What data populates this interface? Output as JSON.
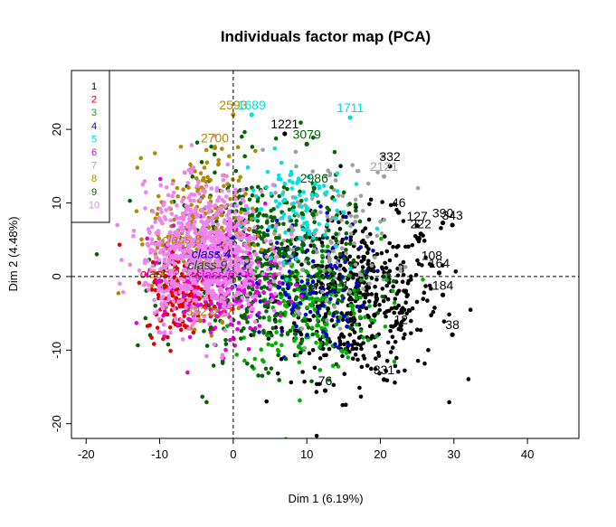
{
  "chart_data": {
    "type": "scatter",
    "title": "Individuals factor map (PCA)",
    "xlabel": "Dim 1 (6.19%)",
    "ylabel": "Dim 2 (4.48%)",
    "xlim": [
      -22,
      47
    ],
    "ylim": [
      -22,
      28
    ],
    "x_ticks": [
      -20,
      -10,
      0,
      10,
      20,
      30,
      40
    ],
    "y_ticks": [
      -20,
      -10,
      0,
      10,
      20
    ],
    "legend": {
      "placement": "top-left",
      "entries": [
        {
          "label": "1",
          "color": "#000000"
        },
        {
          "label": "2",
          "color": "#DF0000"
        },
        {
          "label": "3",
          "color": "#00B000"
        },
        {
          "label": "4",
          "color": "#0000D0"
        },
        {
          "label": "5",
          "color": "#00E0E0"
        },
        {
          "label": "6",
          "color": "#E000E0"
        },
        {
          "label": "7",
          "color": "#A0A0A0"
        },
        {
          "label": "8",
          "color": "#B08A00"
        },
        {
          "label": "9",
          "color": "#006400"
        },
        {
          "label": "10",
          "color": "#EE82EE"
        }
      ]
    },
    "class_centers": [
      {
        "label": "class 8",
        "x": -7,
        "y": 4.5,
        "color": "#B08A00"
      },
      {
        "label": "class 4",
        "x": -3,
        "y": 2.5,
        "color": "#0000D0"
      },
      {
        "label": "class 9",
        "x": -3.5,
        "y": 1.0,
        "color": "#006400"
      },
      {
        "label": "class 2",
        "x": -10,
        "y": -0.2,
        "color": "#DF0000"
      },
      {
        "label": "class 6",
        "x": -2.5,
        "y": -0.3,
        "color": "#E000E0"
      },
      {
        "label": "class 1",
        "x": 13,
        "y": -1.8,
        "color": "#000000"
      }
    ],
    "labeled_points": [
      {
        "label": "2593",
        "x": 0.0,
        "y": 22.0,
        "class": 8
      },
      {
        "label": "1689",
        "x": 2.5,
        "y": 22.0,
        "class": 5
      },
      {
        "label": "1711",
        "x": 15.9,
        "y": 21.6,
        "class": 5
      },
      {
        "label": "1221",
        "x": 7.0,
        "y": 19.4,
        "class": 1
      },
      {
        "label": "3079",
        "x": 10.0,
        "y": 18.0,
        "class": 9
      },
      {
        "label": "2700",
        "x": -2.5,
        "y": 17.5,
        "class": 8
      },
      {
        "label": "332",
        "x": 21.3,
        "y": 15.0,
        "class": 1
      },
      {
        "label": "2121",
        "x": 20.5,
        "y": 13.6,
        "class": 7
      },
      {
        "label": "2986",
        "x": 11.0,
        "y": 12.0,
        "class": 9
      },
      {
        "label": "46",
        "x": 22.5,
        "y": 8.7,
        "class": 1
      },
      {
        "label": "390",
        "x": 28.5,
        "y": 7.3,
        "class": 1
      },
      {
        "label": "343",
        "x": 29.8,
        "y": 7.0,
        "class": 1
      },
      {
        "label": "127",
        "x": 25.0,
        "y": 6.9,
        "class": 1
      },
      {
        "label": "222",
        "x": 25.5,
        "y": 5.8,
        "class": 1
      },
      {
        "label": "108",
        "x": 27.0,
        "y": 1.5,
        "class": 1
      },
      {
        "label": "164",
        "x": 28.0,
        "y": 0.5,
        "class": 1
      },
      {
        "label": "184",
        "x": 28.5,
        "y": -2.5,
        "class": 1
      },
      {
        "label": "38",
        "x": 29.8,
        "y": -7.9,
        "class": 1
      },
      {
        "label": "12",
        "x": 22.8,
        "y": -7.2,
        "class": 1
      },
      {
        "label": "331",
        "x": 20.5,
        "y": -14.0,
        "class": 1
      },
      {
        "label": "76",
        "x": 12.5,
        "y": -15.5,
        "class": 1
      },
      {
        "label": "3322",
        "x": -4.5,
        "y": -6.0,
        "class": 8
      },
      {
        "label": "227",
        "x": -1.5,
        "y": -6.2,
        "class": 8
      }
    ],
    "point_clouds": [
      {
        "class": 1,
        "cx": 17,
        "cy": -3,
        "sx": 5.5,
        "sy": 5.5,
        "n": 520
      },
      {
        "class": 3,
        "cx": 10,
        "cy": -4,
        "sx": 5.0,
        "sy": 4.5,
        "n": 220
      },
      {
        "class": 4,
        "cx": 9,
        "cy": -1,
        "sx": 4.5,
        "sy": 4.5,
        "n": 140
      },
      {
        "class": 7,
        "cx": 12,
        "cy": 6,
        "sx": 5.0,
        "sy": 5.0,
        "n": 150
      },
      {
        "class": 9,
        "cx": 4,
        "cy": 2,
        "sx": 6.0,
        "sy": 6.5,
        "n": 480
      },
      {
        "class": 8,
        "cx": -4,
        "cy": 6,
        "sx": 3.5,
        "sy": 5.5,
        "n": 260
      },
      {
        "class": 2,
        "cx": -7,
        "cy": -2,
        "sx": 2.5,
        "sy": 3.0,
        "n": 180
      },
      {
        "class": 6,
        "cx": -2,
        "cy": -1,
        "sx": 4.0,
        "sy": 4.0,
        "n": 220
      },
      {
        "class": 5,
        "cx": 8,
        "cy": 10,
        "sx": 3.5,
        "sy": 3.5,
        "n": 90
      },
      {
        "class": 10,
        "cx": -4,
        "cy": 3,
        "sx": 4.0,
        "sy": 4.5,
        "n": 820
      }
    ]
  }
}
